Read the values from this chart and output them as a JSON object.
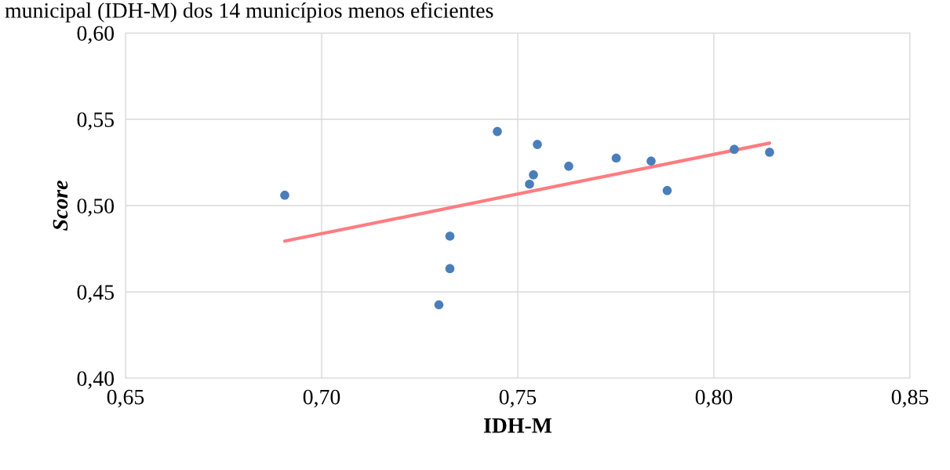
{
  "chart_data": {
    "type": "scatter",
    "title": "municipal (IDH-M) dos 14 municípios menos eficientes",
    "xlabel": "IDH-M",
    "ylabel": "Score",
    "series": [
      {
        "marker": "circle",
        "color": "#4a7ebb",
        "x": [
          0.6906,
          0.7299,
          0.7327,
          0.7327,
          0.7448,
          0.753,
          0.754,
          0.755,
          0.763,
          0.7751,
          0.784,
          0.7881,
          0.8052,
          0.8142
        ],
        "values": [
          0.506,
          0.4425,
          0.4823,
          0.4635,
          0.5429,
          0.5124,
          0.5178,
          0.5354,
          0.5228,
          0.5275,
          0.5258,
          0.5087,
          0.5326,
          0.5309
        ]
      },
      {
        "type": "line",
        "marker": "none",
        "color": "#ff7c80",
        "x": [
          0.6906,
          0.8142
        ],
        "values": [
          0.4794,
          0.5362
        ]
      }
    ],
    "xlim": [
      0.65,
      0.85
    ],
    "ylim": [
      0.4,
      0.6
    ],
    "xticks": [
      {
        "value": 0.65,
        "label": "0,65"
      },
      {
        "value": 0.7,
        "label": "0,70"
      },
      {
        "value": 0.75,
        "label": "0,75"
      },
      {
        "value": 0.8,
        "label": "0,80"
      },
      {
        "value": 0.85,
        "label": "0,85"
      }
    ],
    "yticks": [
      {
        "value": 0.4,
        "label": "0,40"
      },
      {
        "value": 0.45,
        "label": "0,45"
      },
      {
        "value": 0.5,
        "label": "0,50"
      },
      {
        "value": 0.55,
        "label": "0,55"
      },
      {
        "value": 0.6,
        "label": "0,60"
      }
    ],
    "grid": true,
    "legend": false
  }
}
